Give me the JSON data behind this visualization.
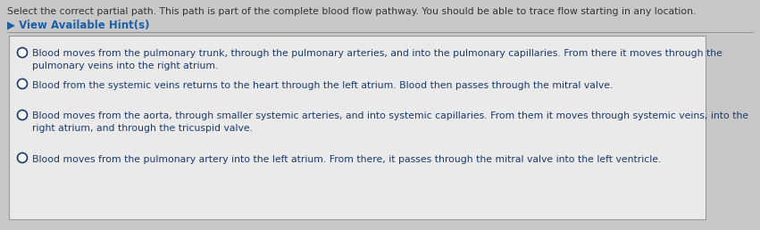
{
  "title": "Select the correct partial path. This path is part of the complete blood flow pathway. You should be able to trace flow starting in any location.",
  "hint_label": "▶ View Available Hint(s)",
  "options": [
    {
      "text": "Blood moves from the pulmonary trunk, through the pulmonary arteries, and into the pulmonary capillaries. From there it moves through the\npulmonary veins into the right atrium.",
      "radio_filled": false
    },
    {
      "text": "Blood from the systemic veins returns to the heart through the left atrium. Blood then passes through the mitral valve.",
      "radio_filled": false
    },
    {
      "text": "Blood moves from the aorta, through smaller systemic arteries, and into systemic capillaries. From them it moves through systemic veins, into the\nright atrium, and through the tricuspid valve.",
      "radio_filled": false
    },
    {
      "text": "Blood moves from the pulmonary artery into the left atrium. From there, it passes through the mitral valve into the left ventricle.",
      "radio_filled": false
    }
  ],
  "bg_color": "#c8c8c8",
  "card_bg_color": "#eaeaea",
  "title_color": "#333333",
  "hint_color": "#1a5fa8",
  "option_text_color": "#1a3a6b",
  "title_fontsize": 7.8,
  "hint_fontsize": 8.5,
  "option_fontsize": 7.8,
  "radio_color": "#1a3a6b",
  "card_border_color": "#999999",
  "separator_color": "#888888"
}
